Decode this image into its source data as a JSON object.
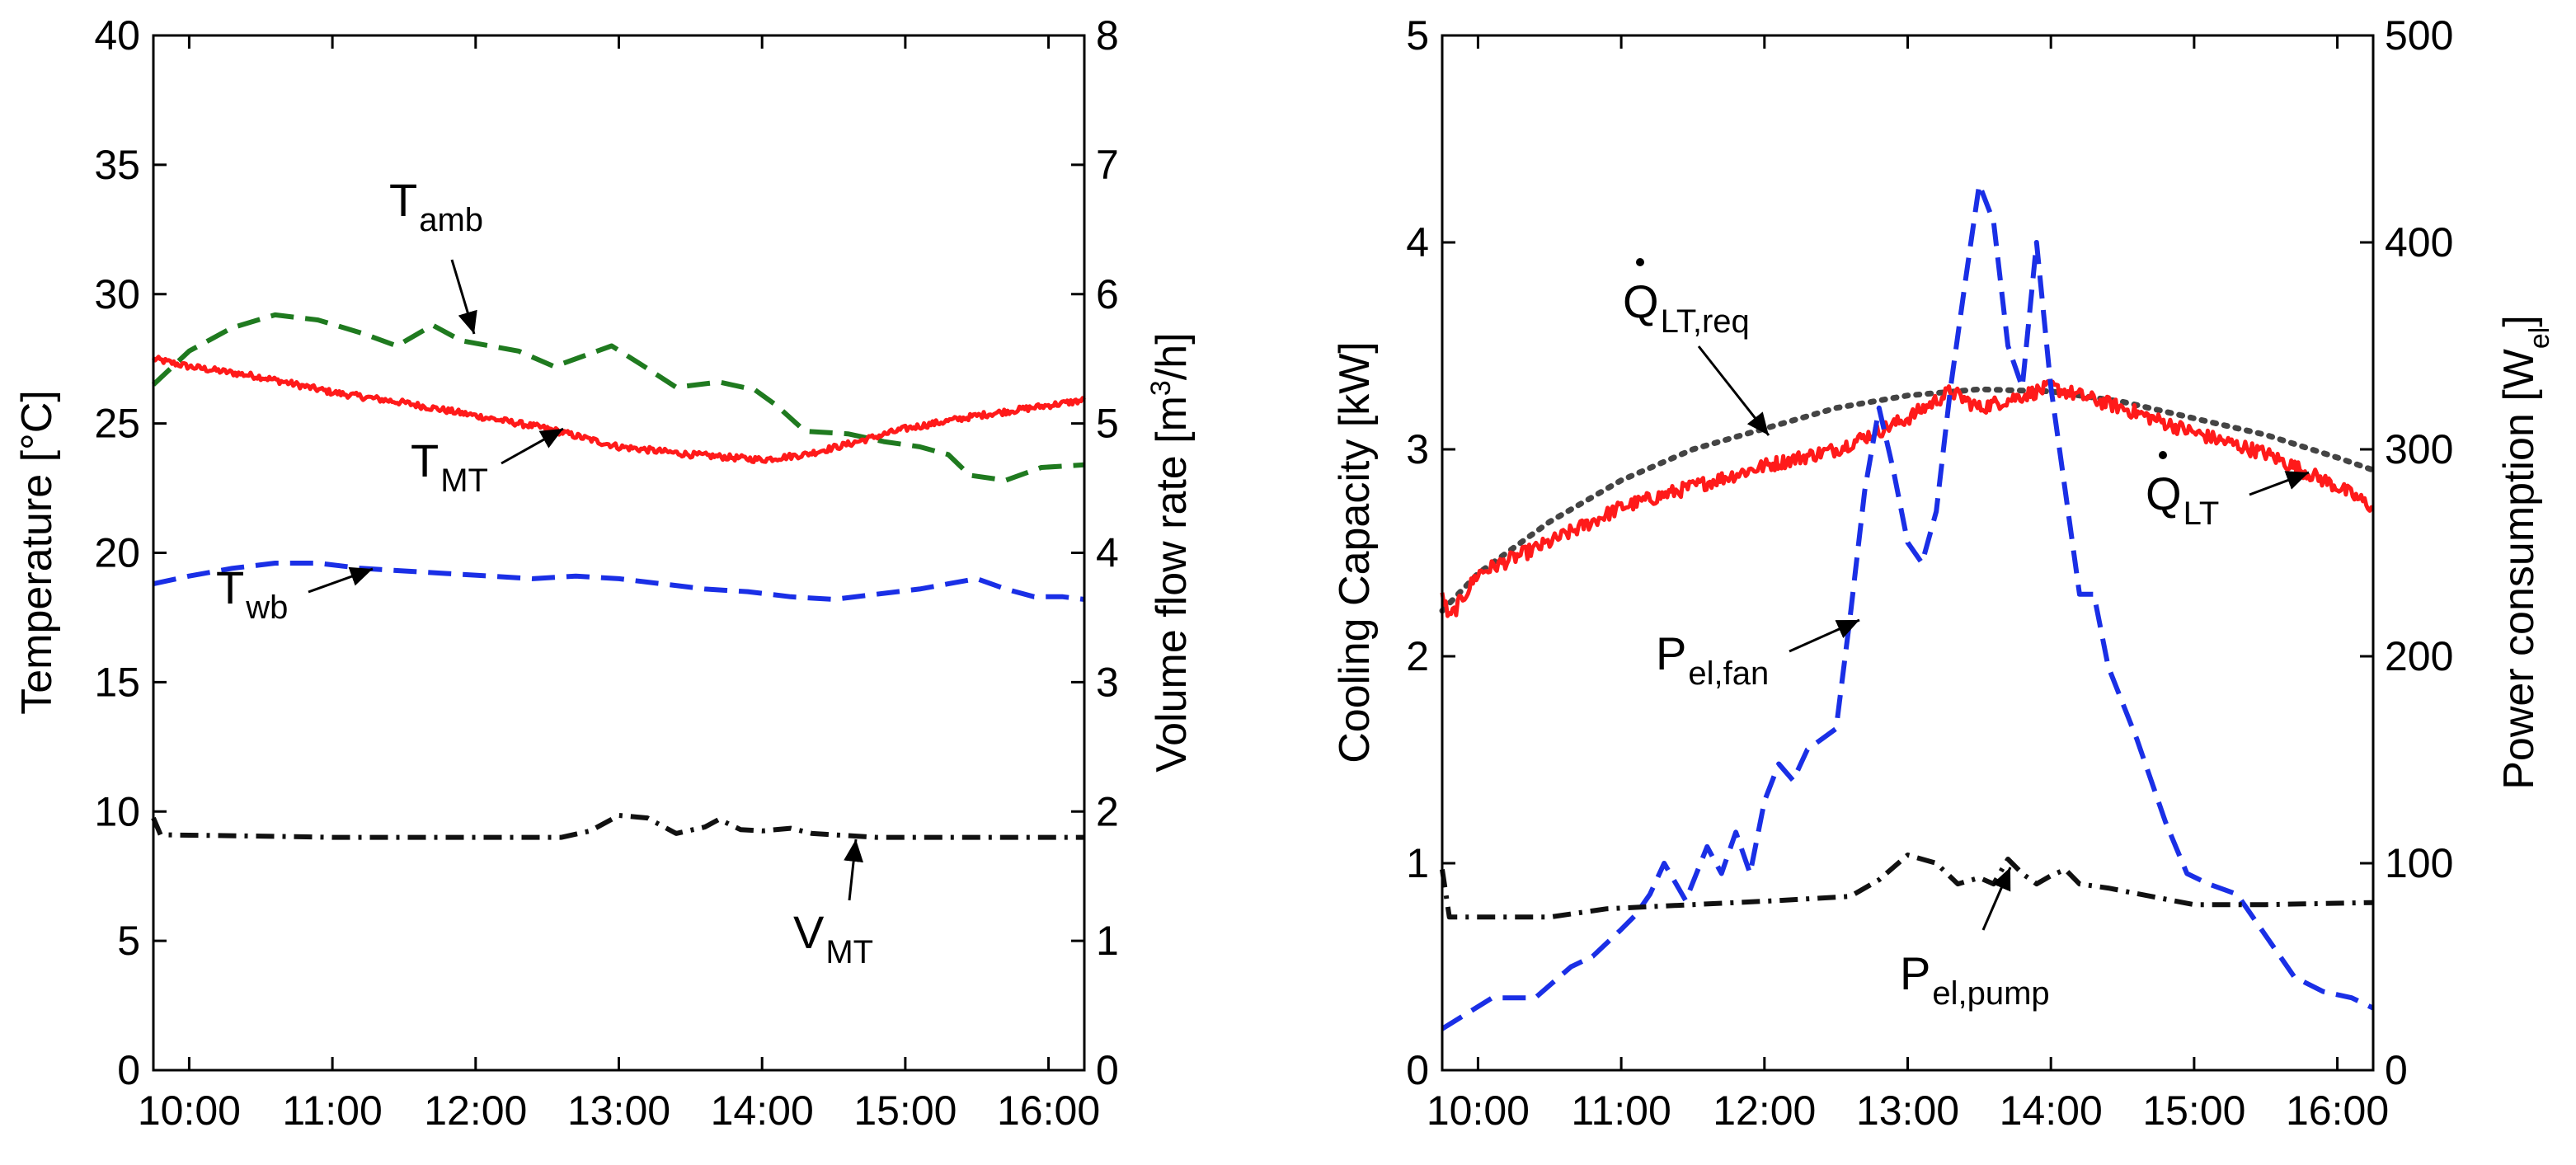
{
  "chart_data": [
    {
      "type": "line",
      "panel": "left",
      "ylabel": "Temperature [°C]",
      "ylim": [
        0,
        40
      ],
      "yticks": [
        "0",
        "5",
        "10",
        "15",
        "20",
        "25",
        "30",
        "35",
        "40"
      ],
      "y2label": "Volume flow rate [m³/h]",
      "y2label_parts": {
        "pre": "Volume flow rate [m",
        "sup": "3",
        "post": "/h]"
      },
      "y2lim": [
        0,
        8
      ],
      "y2ticks": [
        "0",
        "1",
        "2",
        "3",
        "4",
        "5",
        "6",
        "7",
        "8"
      ],
      "xlim": [
        9.75,
        16.25
      ],
      "xticks": [
        {
          "t": 10,
          "label": "10:00"
        },
        {
          "t": 11,
          "label": "11:00"
        },
        {
          "t": 12,
          "label": "12:00"
        },
        {
          "t": 13,
          "label": "13:00"
        },
        {
          "t": 14,
          "label": "14:00"
        },
        {
          "t": 15,
          "label": "15:00"
        },
        {
          "t": 16,
          "label": "16:00"
        }
      ],
      "series": [
        {
          "name": "T_amb",
          "axis": "left",
          "color": "#1f7a1f",
          "style": "dashed",
          "noise": 0,
          "points": [
            [
              9.75,
              26.5
            ],
            [
              10,
              27.8
            ],
            [
              10.3,
              28.7
            ],
            [
              10.6,
              29.2
            ],
            [
              10.9,
              29.0
            ],
            [
              11.2,
              28.5
            ],
            [
              11.45,
              28.0
            ],
            [
              11.7,
              28.8
            ],
            [
              11.9,
              28.2
            ],
            [
              12.1,
              28.0
            ],
            [
              12.3,
              27.8
            ],
            [
              12.55,
              27.2
            ],
            [
              12.75,
              27.6
            ],
            [
              12.95,
              28.0
            ],
            [
              13.15,
              27.3
            ],
            [
              13.4,
              26.4
            ],
            [
              13.7,
              26.6
            ],
            [
              13.95,
              26.3
            ],
            [
              14.1,
              25.7
            ],
            [
              14.3,
              24.7
            ],
            [
              14.6,
              24.6
            ],
            [
              14.85,
              24.3
            ],
            [
              15.1,
              24.1
            ],
            [
              15.3,
              23.8
            ],
            [
              15.45,
              23.0
            ],
            [
              15.7,
              22.8
            ],
            [
              15.95,
              23.3
            ],
            [
              16.25,
              23.4
            ]
          ]
        },
        {
          "name": "T_MT",
          "axis": "left",
          "color": "#ff1a1a",
          "style": "solid",
          "noise": 0.12,
          "points": [
            [
              9.75,
              27.5
            ],
            [
              10,
              27.2
            ],
            [
              10.5,
              26.8
            ],
            [
              11,
              26.2
            ],
            [
              11.5,
              25.8
            ],
            [
              12,
              25.3
            ],
            [
              12.5,
              24.8
            ],
            [
              13,
              24.1
            ],
            [
              13.5,
              23.8
            ],
            [
              14,
              23.6
            ],
            [
              14.3,
              23.8
            ],
            [
              14.6,
              24.2
            ],
            [
              15,
              24.8
            ],
            [
              15.5,
              25.3
            ],
            [
              16,
              25.7
            ],
            [
              16.25,
              25.9
            ]
          ]
        },
        {
          "name": "T_wb",
          "axis": "left",
          "color": "#1a2fe6",
          "style": "dashed",
          "noise": 0,
          "points": [
            [
              9.75,
              18.8
            ],
            [
              10,
              19.1
            ],
            [
              10.3,
              19.4
            ],
            [
              10.6,
              19.6
            ],
            [
              10.9,
              19.6
            ],
            [
              11.2,
              19.4
            ],
            [
              11.5,
              19.3
            ],
            [
              11.8,
              19.2
            ],
            [
              12.1,
              19.1
            ],
            [
              12.4,
              19.0
            ],
            [
              12.7,
              19.1
            ],
            [
              13.0,
              19.0
            ],
            [
              13.3,
              18.8
            ],
            [
              13.6,
              18.6
            ],
            [
              13.9,
              18.5
            ],
            [
              14.2,
              18.3
            ],
            [
              14.5,
              18.2
            ],
            [
              14.8,
              18.4
            ],
            [
              15.1,
              18.6
            ],
            [
              15.3,
              18.8
            ],
            [
              15.5,
              19.0
            ],
            [
              15.7,
              18.6
            ],
            [
              15.9,
              18.3
            ],
            [
              16.1,
              18.3
            ],
            [
              16.25,
              18.2
            ]
          ]
        },
        {
          "name": "V_MT",
          "axis": "right",
          "color": "#111111",
          "style": "dashdot",
          "noise": 0,
          "points": [
            [
              9.75,
              1.95
            ],
            [
              9.8,
              1.82
            ],
            [
              10.5,
              1.81
            ],
            [
              11,
              1.8
            ],
            [
              12,
              1.8
            ],
            [
              12.6,
              1.8
            ],
            [
              12.8,
              1.85
            ],
            [
              13,
              1.97
            ],
            [
              13.2,
              1.95
            ],
            [
              13.4,
              1.83
            ],
            [
              13.6,
              1.88
            ],
            [
              13.7,
              1.94
            ],
            [
              13.85,
              1.86
            ],
            [
              14,
              1.85
            ],
            [
              14.2,
              1.87
            ],
            [
              14.35,
              1.83
            ],
            [
              14.8,
              1.8
            ],
            [
              16.25,
              1.8
            ]
          ]
        }
      ],
      "annotations": [
        {
          "main": "T",
          "sub": "amb"
        },
        {
          "main": "T",
          "sub": "MT"
        },
        {
          "main": "T",
          "sub": "wb"
        },
        {
          "main": "V",
          "sub": "MT"
        }
      ]
    },
    {
      "type": "line",
      "panel": "right",
      "ylabel": "Cooling Capacity [kW]",
      "ylim": [
        0,
        5
      ],
      "yticks": [
        "0",
        "1",
        "2",
        "3",
        "4",
        "5"
      ],
      "y2label": "Power consumption [W_el]",
      "y2label_parts": {
        "pre": "Power consumption [W",
        "sub": "el",
        "post": "]"
      },
      "y2lim": [
        0,
        500
      ],
      "y2ticks": [
        "0",
        "100",
        "200",
        "300",
        "400",
        "500"
      ],
      "xlim": [
        9.75,
        16.25
      ],
      "xticks": [
        {
          "t": 10,
          "label": "10:00"
        },
        {
          "t": 11,
          "label": "11:00"
        },
        {
          "t": 12,
          "label": "12:00"
        },
        {
          "t": 13,
          "label": "13:00"
        },
        {
          "t": 14,
          "label": "14:00"
        },
        {
          "t": 15,
          "label": "15:00"
        },
        {
          "t": 16,
          "label": "16:00"
        }
      ],
      "series": [
        {
          "name": "Q_LT,req",
          "axis": "left",
          "color": "#444444",
          "style": "dotted",
          "noise": 0,
          "points": [
            [
              9.75,
              2.22
            ],
            [
              10,
              2.4
            ],
            [
              10.5,
              2.65
            ],
            [
              11,
              2.85
            ],
            [
              11.5,
              3.0
            ],
            [
              12,
              3.1
            ],
            [
              12.5,
              3.2
            ],
            [
              13,
              3.26
            ],
            [
              13.5,
              3.29
            ],
            [
              14,
              3.28
            ],
            [
              14.5,
              3.23
            ],
            [
              15,
              3.15
            ],
            [
              15.5,
              3.07
            ],
            [
              16,
              2.96
            ],
            [
              16.25,
              2.9
            ]
          ]
        },
        {
          "name": "Q_LT",
          "axis": "left",
          "color": "#ff1a1a",
          "style": "solid",
          "noise": 0.035,
          "points": [
            [
              9.75,
              2.3
            ],
            [
              9.8,
              2.18
            ],
            [
              10,
              2.4
            ],
            [
              10.5,
              2.55
            ],
            [
              11,
              2.72
            ],
            [
              11.5,
              2.82
            ],
            [
              12,
              2.92
            ],
            [
              12.5,
              3.0
            ],
            [
              13,
              3.15
            ],
            [
              13.3,
              3.28
            ],
            [
              13.5,
              3.2
            ],
            [
              14,
              3.3
            ],
            [
              14.5,
              3.2
            ],
            [
              15,
              3.08
            ],
            [
              15.5,
              2.98
            ],
            [
              16,
              2.82
            ],
            [
              16.25,
              2.72
            ]
          ]
        },
        {
          "name": "P_el,fan",
          "axis": "right",
          "color": "#1a2fe6",
          "style": "dashed",
          "noise": 0,
          "points": [
            [
              9.75,
              20
            ],
            [
              10.1,
              35
            ],
            [
              10.4,
              35
            ],
            [
              10.65,
              50
            ],
            [
              10.8,
              55
            ],
            [
              11.0,
              68
            ],
            [
              11.1,
              75
            ],
            [
              11.2,
              85
            ],
            [
              11.3,
              100
            ],
            [
              11.45,
              82
            ],
            [
              11.6,
              108
            ],
            [
              11.7,
              95
            ],
            [
              11.8,
              115
            ],
            [
              11.9,
              95
            ],
            [
              12.0,
              130
            ],
            [
              12.1,
              148
            ],
            [
              12.2,
              140
            ],
            [
              12.3,
              155
            ],
            [
              12.4,
              160
            ],
            [
              12.5,
              165
            ],
            [
              12.6,
              220
            ],
            [
              12.7,
              280
            ],
            [
              12.8,
              320
            ],
            [
              12.9,
              290
            ],
            [
              13.0,
              255
            ],
            [
              13.1,
              245
            ],
            [
              13.2,
              270
            ],
            [
              13.3,
              330
            ],
            [
              13.4,
              380
            ],
            [
              13.5,
              428
            ],
            [
              13.6,
              410
            ],
            [
              13.7,
              350
            ],
            [
              13.8,
              330
            ],
            [
              13.9,
              400
            ],
            [
              14.0,
              330
            ],
            [
              14.1,
              280
            ],
            [
              14.2,
              230
            ],
            [
              14.3,
              230
            ],
            [
              14.4,
              195
            ],
            [
              14.6,
              160
            ],
            [
              14.8,
              120
            ],
            [
              14.95,
              95
            ],
            [
              15.1,
              90
            ],
            [
              15.3,
              85
            ],
            [
              15.5,
              65
            ],
            [
              15.7,
              45
            ],
            [
              15.9,
              38
            ],
            [
              16.1,
              35
            ],
            [
              16.25,
              30
            ]
          ]
        },
        {
          "name": "P_el,pump",
          "axis": "right",
          "color": "#111111",
          "style": "dashdot",
          "noise": 0,
          "points": [
            [
              9.75,
              97
            ],
            [
              9.8,
              74
            ],
            [
              10.5,
              74
            ],
            [
              10.9,
              78
            ],
            [
              11.5,
              80
            ],
            [
              12.1,
              82
            ],
            [
              12.6,
              84
            ],
            [
              12.8,
              92
            ],
            [
              13.0,
              104
            ],
            [
              13.2,
              100
            ],
            [
              13.35,
              90
            ],
            [
              13.5,
              93
            ],
            [
              13.6,
              90
            ],
            [
              13.7,
              102
            ],
            [
              13.8,
              95
            ],
            [
              13.9,
              90
            ],
            [
              14.0,
              94
            ],
            [
              14.1,
              97
            ],
            [
              14.2,
              90
            ],
            [
              14.4,
              88
            ],
            [
              14.7,
              84
            ],
            [
              15.0,
              80
            ],
            [
              15.5,
              80
            ],
            [
              16.25,
              81
            ]
          ]
        }
      ],
      "annotations": [
        {
          "main": "Q",
          "sub": "LT,req",
          "dot": true
        },
        {
          "main": "Q",
          "sub": "LT",
          "dot": true
        },
        {
          "main": "P",
          "sub": "el,fan"
        },
        {
          "main": "P",
          "sub": "el,pump"
        }
      ]
    }
  ],
  "colors": {
    "axis": "#000000",
    "tamb": "#1f7a1f",
    "tmt": "#ff1a1a",
    "twb": "#1a2fe6",
    "vmt": "#111111",
    "qreq": "#444444"
  }
}
